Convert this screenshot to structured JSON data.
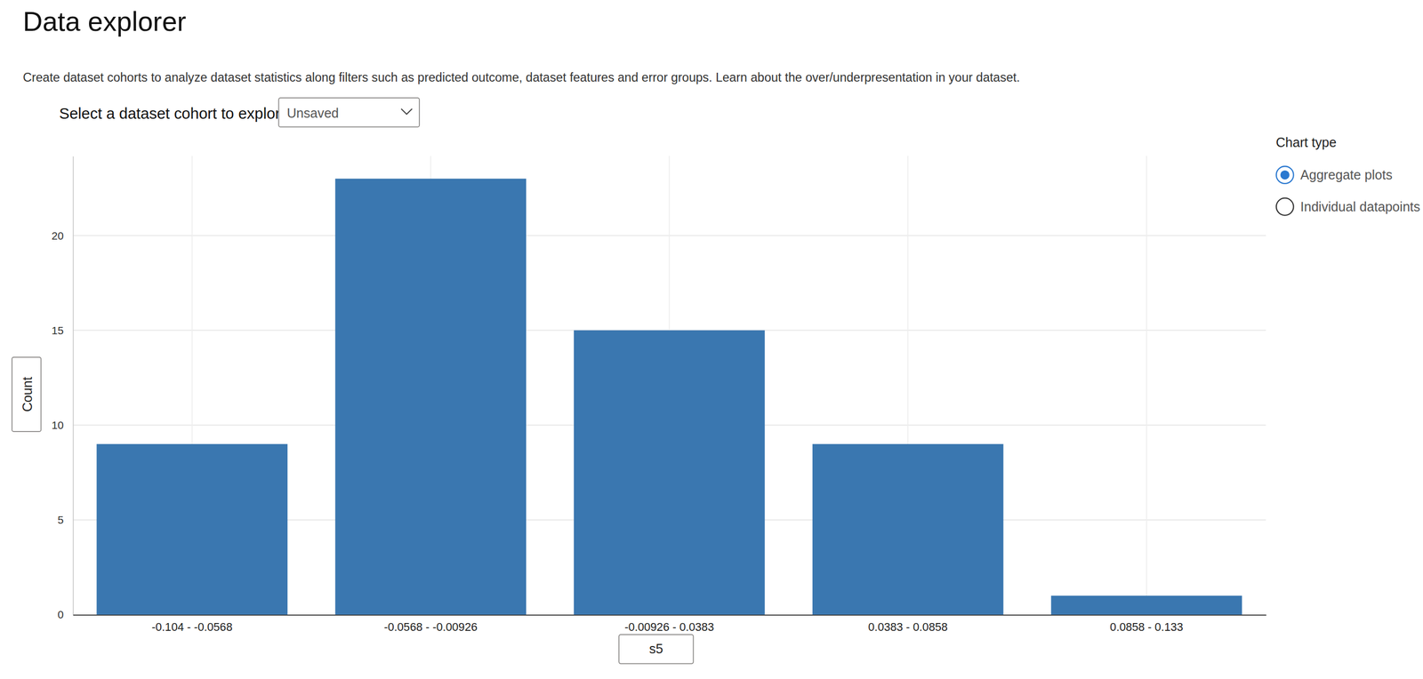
{
  "page": {
    "title": "Data explorer",
    "description": "Create dataset cohorts to analyze dataset statistics along filters such as predicted outcome, dataset features and error groups. Learn about the over/underpresentation in your dataset.",
    "cohort_label": "Select a dataset cohort to explore",
    "cohort_value": "Unsaved",
    "chart_type_label": "Chart type",
    "chart_type_options": [
      "Aggregate plots",
      "Individual datapoints"
    ],
    "chart_type_selected": "Aggregate plots"
  },
  "chart_data": {
    "type": "bar",
    "x_label": "s5",
    "y_label": "Count",
    "categories": [
      "-0.104 - -0.0568",
      "-0.0568 - -0.00926",
      "-0.00926 - 0.0383",
      "0.0383 - 0.0858",
      "0.0858 - 0.133"
    ],
    "values": [
      9,
      23,
      15,
      9,
      1
    ],
    "color": "#3a77b0",
    "ylim": [
      0,
      24.2
    ],
    "yticks": [
      0,
      5,
      10,
      15,
      20
    ],
    "grid": true
  }
}
